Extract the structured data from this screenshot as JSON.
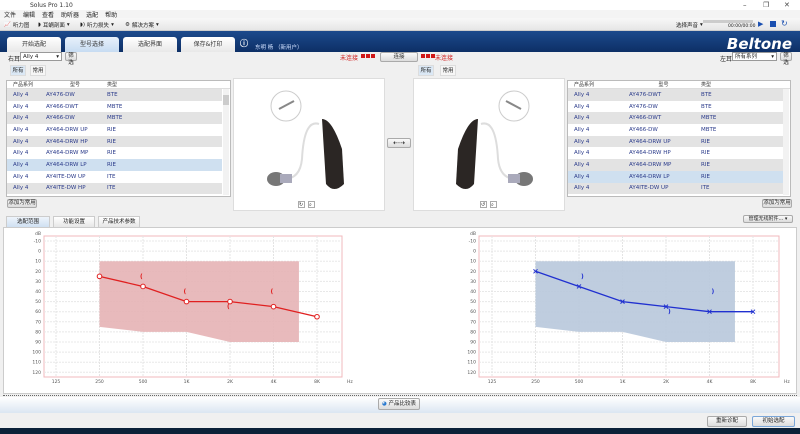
{
  "app": {
    "title": "Solus Pro 1.10",
    "controls": [
      "–",
      "❐",
      "✕"
    ]
  },
  "menu": [
    "文件",
    "编辑",
    "查看",
    "助听器",
    "选配",
    "帮助"
  ],
  "toolbar": {
    "audiogram": "听力图",
    "ear_impression": "耳蜗剖面",
    "hearing_loss": "听力损失",
    "solution": "解决方案",
    "sound_select": "选择声音",
    "time": "00:00/00:00"
  },
  "header": {
    "tabs": [
      "开始选配",
      "型号选择",
      "选配界面",
      "保存&打印"
    ],
    "active_tab": 1,
    "user": "东明 杨 （新用户）",
    "logo": "Beltone",
    "brand_color": "#0d2f66"
  },
  "right_ear": {
    "label": "右耳",
    "series": "Ally 4",
    "filter": "筛选",
    "status": "未连接"
  },
  "left_ear": {
    "label": "左耳",
    "series": "所有系列",
    "filter": "筛选",
    "status": "未连接"
  },
  "connect_label": "连接",
  "subtabs": [
    "所有",
    "常用"
  ],
  "columns": [
    "产品系列",
    "型号",
    "类型"
  ],
  "left_table": [
    [
      "Ally 4",
      "AY476-DW",
      "BTE"
    ],
    [
      "Ally 4",
      "AY466-DWT",
      "MBTE"
    ],
    [
      "Ally 4",
      "AY466-DW",
      "MBTE"
    ],
    [
      "Ally 4",
      "AY464-DRW UP",
      "RIE"
    ],
    [
      "Ally 4",
      "AY464-DRW HP",
      "RIE"
    ],
    [
      "Ally 4",
      "AY464-DRW MP",
      "RIE"
    ],
    [
      "Ally 4",
      "AY464-DRW LP",
      "RIE"
    ],
    [
      "Ally 4",
      "AY4ITE-DW UP",
      "ITE"
    ],
    [
      "Ally 4",
      "AY4ITE-DW HP",
      "ITE"
    ]
  ],
  "left_selected": 6,
  "right_table": [
    [
      "Ally 4",
      "AY476-DWT",
      "BTE"
    ],
    [
      "Ally 4",
      "AY476-DW",
      "BTE"
    ],
    [
      "Ally 4",
      "AY466-DWT",
      "MBTE"
    ],
    [
      "Ally 4",
      "AY466-DW",
      "MBTE"
    ],
    [
      "Ally 4",
      "AY464-DRW UP",
      "RIE"
    ],
    [
      "Ally 4",
      "AY464-DRW HP",
      "RIE"
    ],
    [
      "Ally 4",
      "AY464-DRW MP",
      "RIE"
    ],
    [
      "Ally 4",
      "AY464-DRW LP",
      "RIE"
    ],
    [
      "Ally 4",
      "AY4ITE-DW UP",
      "ITE"
    ]
  ],
  "right_selected": 7,
  "add_favorite": "添加为常用",
  "lower_tabs": [
    "选配范围",
    "功能设置",
    "产品技术参数"
  ],
  "wireless_button": "管理无线附件...",
  "compare_button": "产品比较表",
  "footer_buttons": [
    "重新诊配",
    "初始选配"
  ],
  "chart_data": [
    {
      "type": "line",
      "ear": "right",
      "color": "#e02020",
      "ylabel": "dB",
      "xunit": "Hz",
      "ylim": [
        -10,
        120
      ],
      "yticks": [
        -10,
        0,
        10,
        20,
        30,
        40,
        50,
        60,
        70,
        80,
        90,
        100,
        110,
        120
      ],
      "xticks": [
        "125",
        "250",
        "500",
        "1K",
        "2K",
        "4K",
        "8K"
      ],
      "series": [
        {
          "x": [
            "250",
            "500",
            "1K",
            "2K",
            "4K",
            "8K"
          ],
          "values": [
            25,
            35,
            50,
            50,
            55,
            65
          ]
        }
      ],
      "ucl": [
        {
          "x": "500",
          "value": 25
        },
        {
          "x": "1K",
          "value": 40
        },
        {
          "x": "2K",
          "value": 55
        },
        {
          "x": "4K",
          "value": 40
        }
      ],
      "fitting_range": {
        "color": "#e6b3b5",
        "x": [
          "250",
          "500",
          "1K",
          "2K",
          "6K"
        ],
        "top": [
          10,
          10,
          10,
          10,
          10
        ],
        "bottom": [
          75,
          80,
          80,
          90,
          90
        ]
      }
    },
    {
      "type": "line",
      "ear": "left",
      "color": "#2030d0",
      "ylabel": "dB",
      "xunit": "Hz",
      "ylim": [
        -10,
        120
      ],
      "yticks": [
        -10,
        0,
        10,
        20,
        30,
        40,
        50,
        60,
        70,
        80,
        90,
        100,
        110,
        120
      ],
      "xticks": [
        "125",
        "250",
        "500",
        "1K",
        "2K",
        "4K",
        "8K"
      ],
      "series": [
        {
          "x": [
            "250",
            "500",
            "1K",
            "2K",
            "4K",
            "8K"
          ],
          "values": [
            20,
            35,
            50,
            55,
            60,
            60
          ]
        }
      ],
      "ucl": [
        {
          "x": "500",
          "value": 25
        },
        {
          "x": "2K",
          "value": 60
        },
        {
          "x": "4K",
          "value": 40
        }
      ],
      "fitting_range": {
        "color": "#b8c8dc",
        "x": [
          "250",
          "500",
          "1K",
          "2K",
          "6K"
        ],
        "top": [
          10,
          10,
          10,
          10,
          10
        ],
        "bottom": [
          75,
          80,
          80,
          90,
          90
        ]
      }
    }
  ]
}
